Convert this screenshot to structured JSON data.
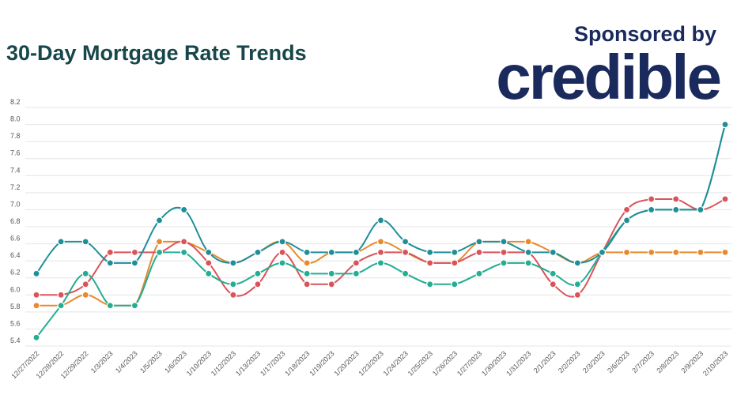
{
  "header": {
    "title": "30-Day Mortgage Rate Trends",
    "sponsored_label": "Sponsored by",
    "sponsor_logo": "credible"
  },
  "colors": {
    "title": "#17474a",
    "sponsor": "#1b2a5c"
  },
  "chart_data": {
    "type": "line",
    "title": "30-Day Mortgage Rate Trends",
    "xlabel": "",
    "ylabel": "",
    "ylim": [
      5.4,
      8.2
    ],
    "yticks": [
      5.4,
      5.6,
      5.8,
      6.0,
      6.2,
      6.4,
      6.6,
      6.8,
      7.0,
      7.2,
      7.4,
      7.6,
      7.8,
      8.0,
      8.2
    ],
    "grid": true,
    "legend": "none",
    "smooth": true,
    "categories": [
      "12/27/2022",
      "12/28/2022",
      "12/29/2022",
      "1/3/2023",
      "1/4/2023",
      "1/5/2023",
      "1/6/2023",
      "1/10/2023",
      "1/12/2023",
      "1/13/2023",
      "1/17/2023",
      "1/18/2023",
      "1/19/2023",
      "1/20/2023",
      "1/23/2023",
      "1/24/2023",
      "1/25/2023",
      "1/26/2023",
      "1/27/2023",
      "1/30/2023",
      "1/31/2023",
      "2/1/2023",
      "2/2/2023",
      "2/3/2023",
      "2/6/2023",
      "2/7/2023",
      "2/8/2023",
      "2/9/2023",
      "2/10/2023"
    ],
    "series": [
      {
        "color": "#e8892e",
        "values": [
          5.875,
          5.875,
          6.0,
          5.875,
          5.875,
          6.625,
          6.625,
          6.5,
          6.375,
          6.5,
          6.625,
          6.375,
          6.5,
          6.5,
          6.625,
          6.5,
          6.375,
          6.375,
          6.625,
          6.625,
          6.625,
          6.5,
          6.375,
          6.5,
          6.5,
          6.5,
          6.5,
          6.5,
          6.5
        ]
      },
      {
        "color": "#d9545a",
        "values": [
          6.0,
          6.0,
          6.125,
          6.5,
          6.5,
          6.5,
          6.625,
          6.375,
          6.0,
          6.125,
          6.5,
          6.125,
          6.125,
          6.375,
          6.5,
          6.5,
          6.375,
          6.375,
          6.5,
          6.5,
          6.5,
          6.125,
          6.0,
          6.5,
          7.0,
          7.125,
          7.125,
          7.0,
          7.125
        ]
      },
      {
        "color": "#23ad92",
        "values": [
          5.5,
          5.875,
          6.25,
          5.875,
          5.875,
          6.5,
          6.5,
          6.25,
          6.125,
          6.25,
          6.375,
          6.25,
          6.25,
          6.25,
          6.375,
          6.25,
          6.125,
          6.125,
          6.25,
          6.375,
          6.375,
          6.25,
          6.125,
          6.5,
          6.875,
          7.0,
          7.0,
          7.0,
          8.0
        ]
      },
      {
        "color": "#1f8e98",
        "values": [
          6.25,
          6.625,
          6.625,
          6.375,
          6.375,
          6.875,
          7.0,
          6.5,
          6.375,
          6.5,
          6.625,
          6.5,
          6.5,
          6.5,
          6.875,
          6.625,
          6.5,
          6.5,
          6.625,
          6.625,
          6.5,
          6.5,
          6.375,
          6.5,
          6.875,
          7.0,
          7.0,
          7.0,
          8.0
        ]
      }
    ]
  }
}
